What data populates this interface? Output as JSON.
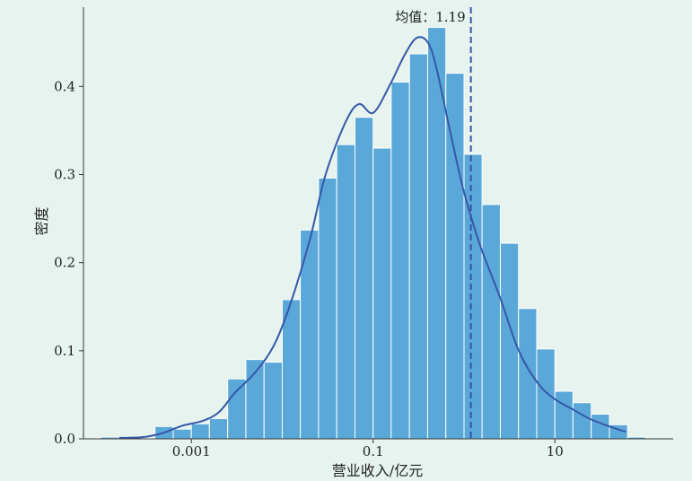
{
  "chart_data": {
    "type": "bar",
    "subtype": "histogram with density curve",
    "xlabel": "营业收入/亿元",
    "ylabel": "密度",
    "x_scale": "log",
    "x_ticks": [
      {
        "value": 0.001,
        "label": "0.001"
      },
      {
        "value": 0.1,
        "label": "0.1"
      },
      {
        "value": 10,
        "label": "10"
      }
    ],
    "y_ticks": [
      {
        "value": 0.0,
        "label": "0.0"
      },
      {
        "value": 0.1,
        "label": "0.1"
      },
      {
        "value": 0.2,
        "label": "0.2"
      },
      {
        "value": 0.3,
        "label": "0.3"
      },
      {
        "value": 0.4,
        "label": "0.4"
      }
    ],
    "xlim": [
      6.5e-05,
      200
    ],
    "ylim": [
      0,
      0.49
    ],
    "grid": false,
    "mean_value": 1.19,
    "mean_label": "均值：1.19",
    "bins": [
      {
        "x0": 0.0001,
        "x1": 0.000159,
        "density": 0.002
      },
      {
        "x0": 0.000159,
        "x1": 0.000251,
        "density": 0.001
      },
      {
        "x0": 0.000251,
        "x1": 0.000398,
        "density": 0.001
      },
      {
        "x0": 0.000398,
        "x1": 0.000631,
        "density": 0.014
      },
      {
        "x0": 0.000631,
        "x1": 0.001,
        "density": 0.011
      },
      {
        "x0": 0.001,
        "x1": 0.00158,
        "density": 0.017
      },
      {
        "x0": 0.00158,
        "x1": 0.00251,
        "density": 0.023
      },
      {
        "x0": 0.00251,
        "x1": 0.00398,
        "density": 0.068
      },
      {
        "x0": 0.00398,
        "x1": 0.00631,
        "density": 0.09
      },
      {
        "x0": 0.00631,
        "x1": 0.01,
        "density": 0.087
      },
      {
        "x0": 0.01,
        "x1": 0.0158,
        "density": 0.158
      },
      {
        "x0": 0.0158,
        "x1": 0.0251,
        "density": 0.237
      },
      {
        "x0": 0.0251,
        "x1": 0.0398,
        "density": 0.296
      },
      {
        "x0": 0.0398,
        "x1": 0.0631,
        "density": 0.334
      },
      {
        "x0": 0.0631,
        "x1": 0.1,
        "density": 0.365
      },
      {
        "x0": 0.1,
        "x1": 0.158,
        "density": 0.33
      },
      {
        "x0": 0.158,
        "x1": 0.251,
        "density": 0.405
      },
      {
        "x0": 0.251,
        "x1": 0.398,
        "density": 0.437
      },
      {
        "x0": 0.398,
        "x1": 0.631,
        "density": 0.467
      },
      {
        "x0": 0.631,
        "x1": 1.0,
        "density": 0.415
      },
      {
        "x0": 1.0,
        "x1": 1.58,
        "density": 0.323
      },
      {
        "x0": 1.58,
        "x1": 2.51,
        "density": 0.266
      },
      {
        "x0": 2.51,
        "x1": 3.98,
        "density": 0.222
      },
      {
        "x0": 3.98,
        "x1": 6.31,
        "density": 0.148
      },
      {
        "x0": 6.31,
        "x1": 10.0,
        "density": 0.102
      },
      {
        "x0": 10.0,
        "x1": 15.8,
        "density": 0.054
      },
      {
        "x0": 15.8,
        "x1": 25.1,
        "density": 0.041
      },
      {
        "x0": 25.1,
        "x1": 39.8,
        "density": 0.028
      },
      {
        "x0": 39.8,
        "x1": 63.1,
        "density": 0.016
      },
      {
        "x0": 63.1,
        "x1": 100.0,
        "density": 0.002
      }
    ],
    "density_curve": {
      "x": [
        0.00016,
        0.0003,
        0.0005,
        0.0008,
        0.0013,
        0.002,
        0.003,
        0.005,
        0.008,
        0.012,
        0.02,
        0.03,
        0.05,
        0.07,
        0.1,
        0.15,
        0.22,
        0.3,
        0.4,
        0.5,
        0.7,
        1.0,
        1.5,
        2.5,
        4.0,
        6.5,
        10.0,
        16.0,
        25.0,
        40.0,
        60.0
      ],
      "y": [
        0.001,
        0.002,
        0.007,
        0.015,
        0.02,
        0.03,
        0.052,
        0.075,
        0.105,
        0.15,
        0.225,
        0.3,
        0.36,
        0.38,
        0.37,
        0.4,
        0.435,
        0.455,
        0.45,
        0.42,
        0.35,
        0.28,
        0.22,
        0.16,
        0.1,
        0.063,
        0.045,
        0.033,
        0.022,
        0.014,
        0.008
      ]
    },
    "colors": {
      "bar": "#5aa8d8",
      "bar_edge": "#ffffff",
      "curve": "#3558a8",
      "mean_line": "#3653a8",
      "axis": "#333333",
      "background": "#e6f3ee"
    }
  }
}
